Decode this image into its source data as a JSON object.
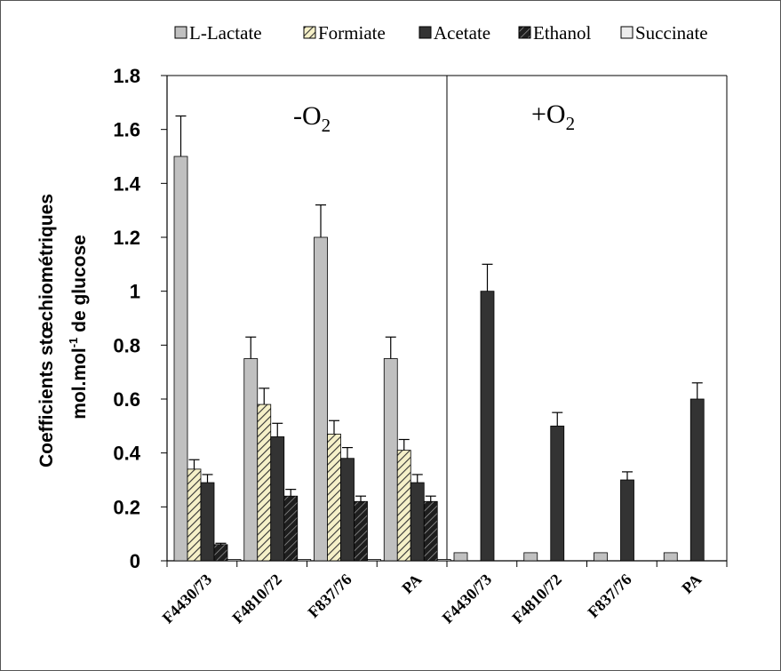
{
  "chart_data": {
    "type": "bar",
    "panels": [
      {
        "label": "-O",
        "subscript": "2"
      },
      {
        "label": "+O",
        "subscript": "2"
      }
    ],
    "categories": [
      "F4430/73",
      "F4810/72",
      "F837/76",
      "PA",
      "F4430/73",
      "F4810/72",
      "F837/76",
      "PA"
    ],
    "series": [
      {
        "name": "L-Lactate",
        "color": "#c0c0c0",
        "pattern": "solid",
        "values": [
          1.5,
          0.75,
          1.2,
          0.75,
          0.03,
          0.03,
          0.03,
          0.03
        ],
        "errors": [
          0.15,
          0.08,
          0.12,
          0.08,
          0,
          0,
          0,
          0
        ]
      },
      {
        "name": "Formiate",
        "color": "#f5f0c8",
        "pattern": "hatch-light",
        "values": [
          0.34,
          0.58,
          0.47,
          0.41,
          0,
          0,
          0,
          0
        ],
        "errors": [
          0.035,
          0.06,
          0.05,
          0.04,
          0,
          0,
          0,
          0
        ]
      },
      {
        "name": "Acetate",
        "color": "#333333",
        "pattern": "solid",
        "values": [
          0.29,
          0.46,
          0.38,
          0.29,
          1.0,
          0.5,
          0.3,
          0.6
        ],
        "errors": [
          0.03,
          0.05,
          0.04,
          0.03,
          0.1,
          0.05,
          0.03,
          0.06
        ]
      },
      {
        "name": "Ethanol",
        "color": "#222222",
        "pattern": "hatch-dark",
        "values": [
          0.06,
          0.24,
          0.22,
          0.22,
          0,
          0,
          0,
          0
        ],
        "errors": [
          0.005,
          0.025,
          0.02,
          0.02,
          0,
          0,
          0,
          0
        ]
      },
      {
        "name": "Succinate",
        "color": "#ececec",
        "pattern": "solid",
        "values": [
          0.005,
          0.005,
          0.005,
          0.005,
          0,
          0,
          0,
          0
        ],
        "errors": [
          0,
          0,
          0,
          0,
          0,
          0,
          0,
          0
        ]
      }
    ],
    "ylabel_line1": "Coefficients stœchiométriques",
    "ylabel_line2_prefix": "mol.mol",
    "ylabel_line2_sup": "-1",
    "ylabel_line2_suffix": " de glucose",
    "ylim": [
      0,
      1.8
    ],
    "yticks": [
      "0",
      "0.2",
      "0.4",
      "0.6",
      "0.8",
      "1",
      "1.2",
      "1.4",
      "1.6",
      "1.8"
    ],
    "ytick_values": [
      0,
      0.2,
      0.4,
      0.6,
      0.8,
      1.0,
      1.2,
      1.4,
      1.6,
      1.8
    ],
    "grid": false,
    "legend_position": "top"
  }
}
